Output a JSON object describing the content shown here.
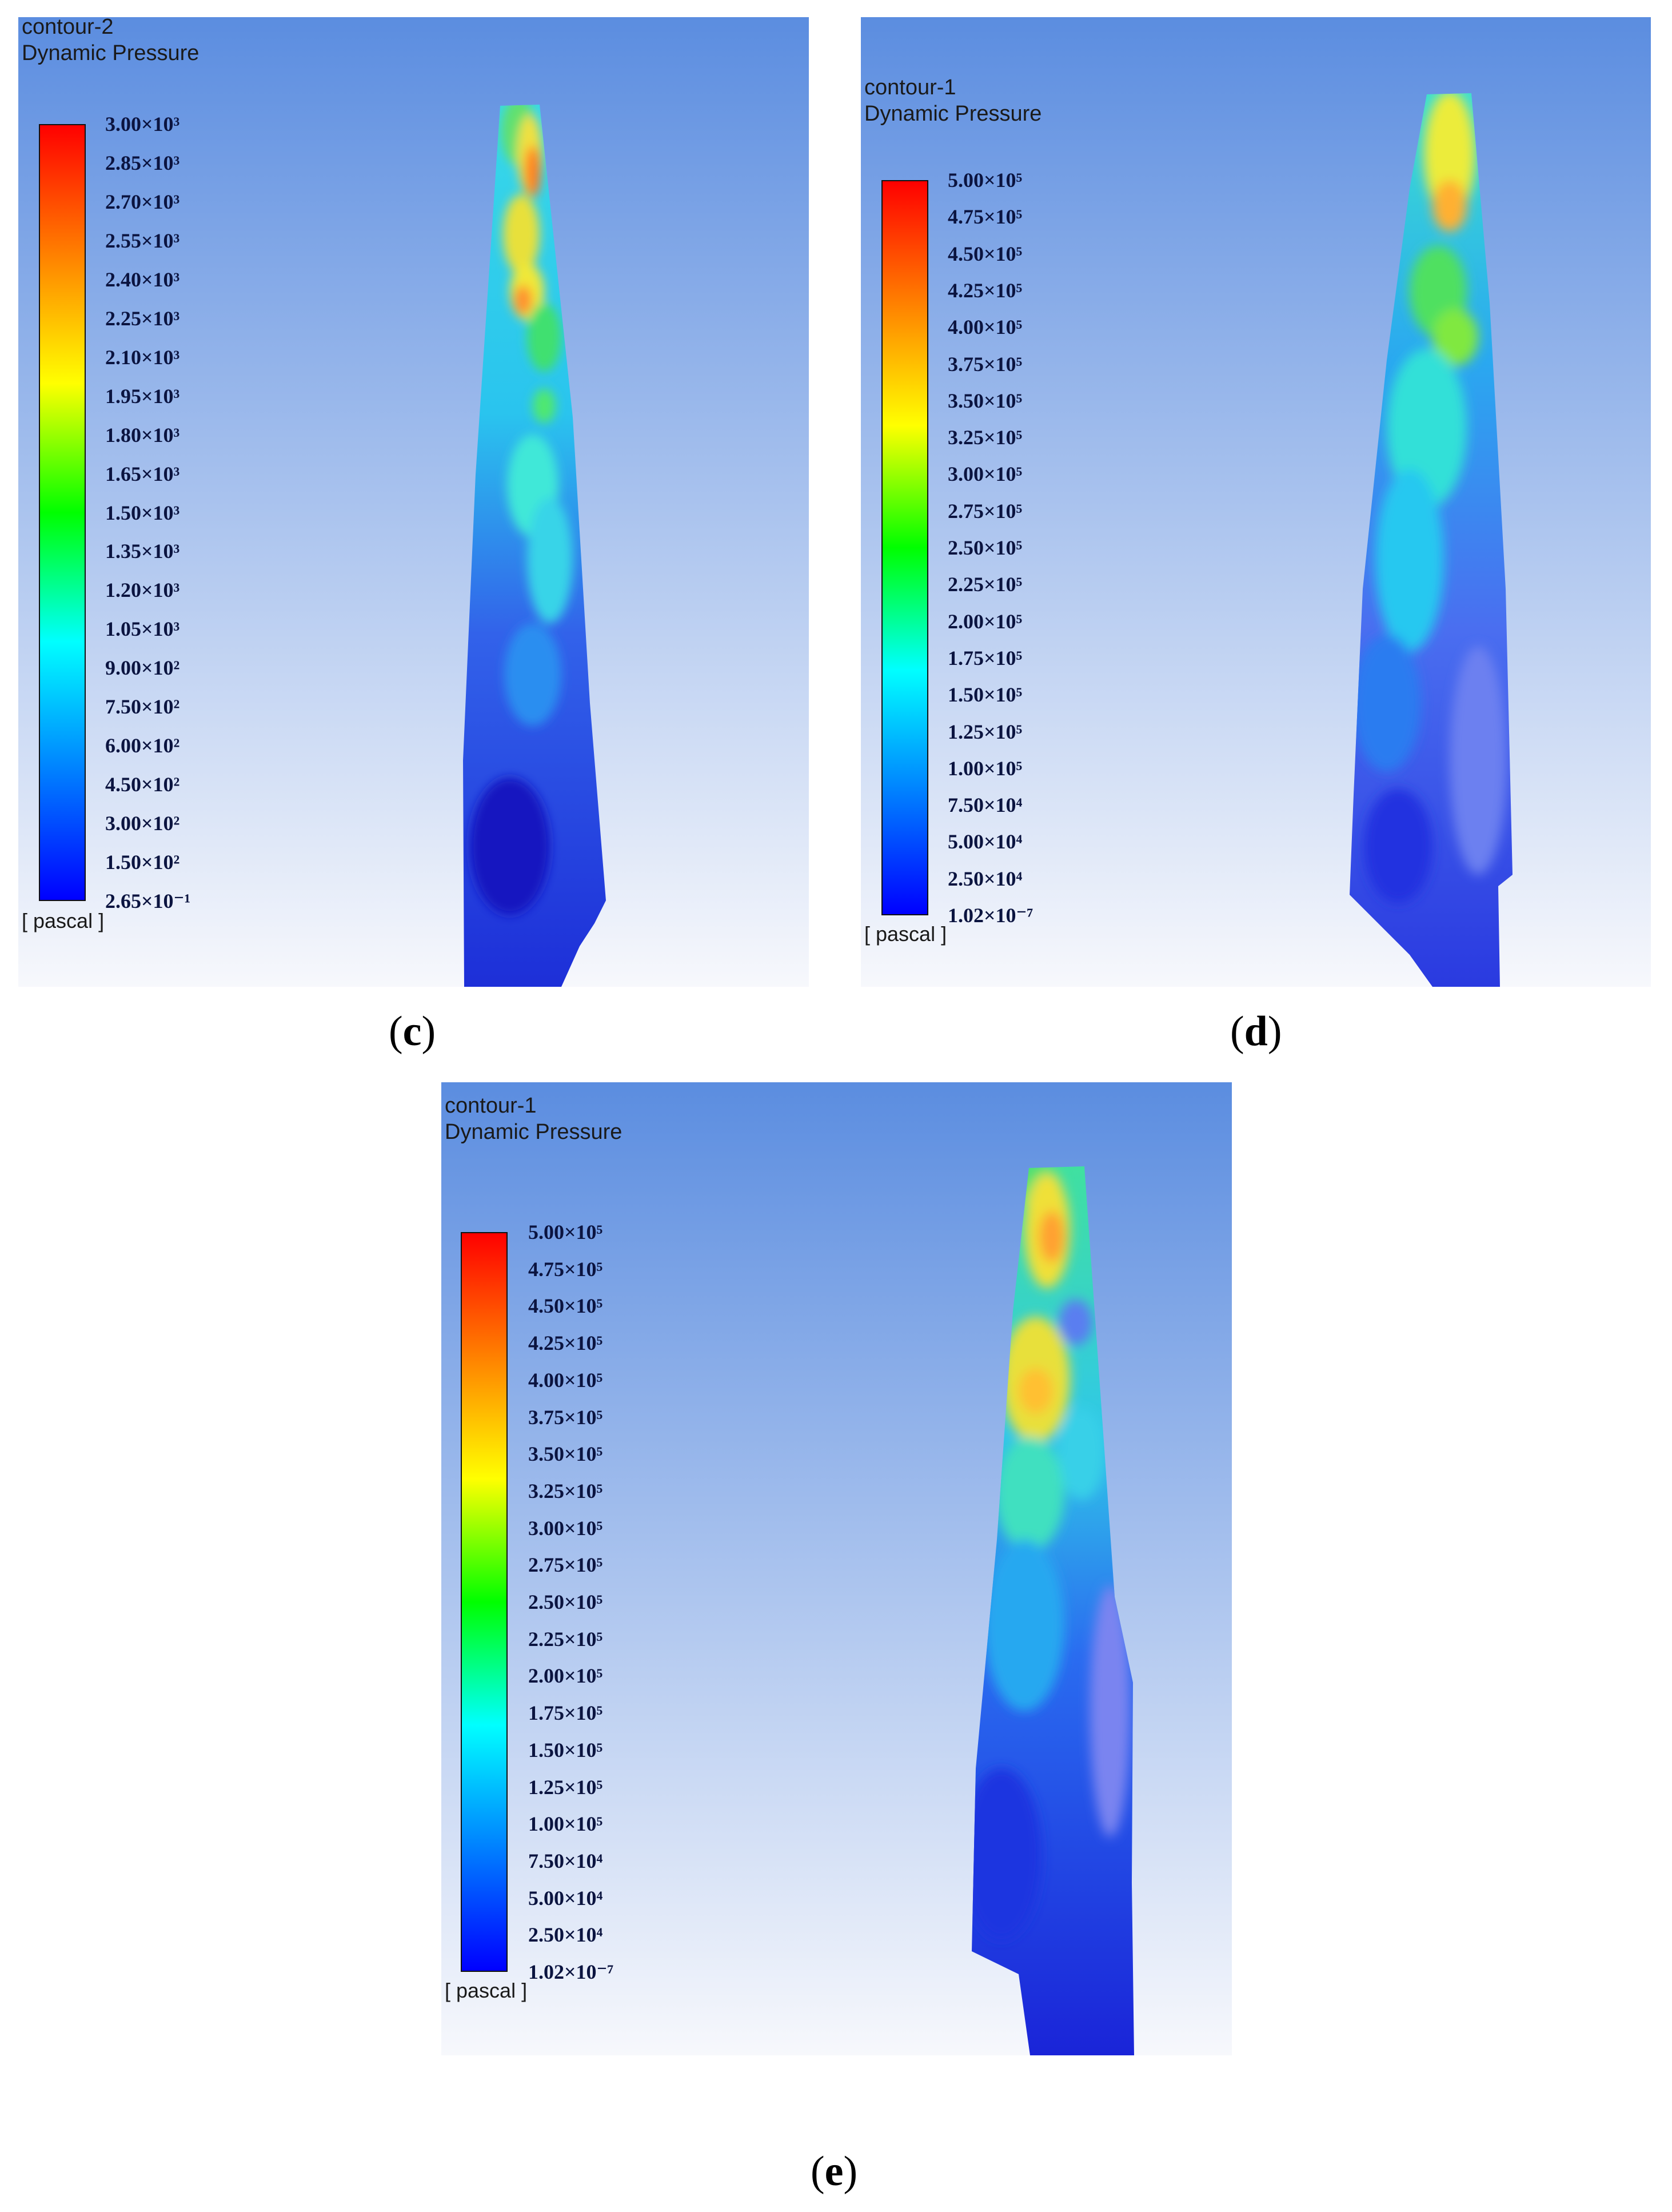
{
  "panels": [
    {
      "id": "c",
      "title": "contour-2",
      "variable": "Dynamic Pressure",
      "unit": "[ pascal ]",
      "caption_open": "(",
      "caption_letter": "c",
      "caption_close": ")",
      "colorbar_labels": [
        "3.00×10³",
        "2.85×10³",
        "2.70×10³",
        "2.55×10³",
        "2.40×10³",
        "2.25×10³",
        "2.10×10³",
        "1.95×10³",
        "1.80×10³",
        "1.65×10³",
        "1.50×10³",
        "1.35×10³",
        "1.20×10³",
        "1.05×10³",
        "9.00×10²",
        "7.50×10²",
        "6.00×10²",
        "4.50×10²",
        "3.00×10²",
        "1.50×10²",
        "2.65×10⁻¹"
      ]
    },
    {
      "id": "d",
      "title": "contour-1",
      "variable": "Dynamic Pressure",
      "unit": "[ pascal ]",
      "caption_open": "(",
      "caption_letter": "d",
      "caption_close": ")",
      "colorbar_labels": [
        "5.00×10⁵",
        "4.75×10⁵",
        "4.50×10⁵",
        "4.25×10⁵",
        "4.00×10⁵",
        "3.75×10⁵",
        "3.50×10⁵",
        "3.25×10⁵",
        "3.00×10⁵",
        "2.75×10⁵",
        "2.50×10⁵",
        "2.25×10⁵",
        "2.00×10⁵",
        "1.75×10⁵",
        "1.50×10⁵",
        "1.25×10⁵",
        "1.00×10⁵",
        "7.50×10⁴",
        "5.00×10⁴",
        "2.50×10⁴",
        "1.02×10⁻⁷"
      ]
    },
    {
      "id": "e",
      "title": "contour-1",
      "variable": "Dynamic Pressure",
      "unit": "[ pascal ]",
      "caption_open": "(",
      "caption_letter": "e",
      "caption_close": ")",
      "colorbar_labels": [
        "5.00×10⁵",
        "4.75×10⁵",
        "4.50×10⁵",
        "4.25×10⁵",
        "4.00×10⁵",
        "3.75×10⁵",
        "3.50×10⁵",
        "3.25×10⁵",
        "3.00×10⁵",
        "2.75×10⁵",
        "2.50×10⁵",
        "2.25×10⁵",
        "2.00×10⁵",
        "1.75×10⁵",
        "1.50×10⁵",
        "1.25×10⁵",
        "1.00×10⁵",
        "7.50×10⁴",
        "5.00×10⁴",
        "2.50×10⁴",
        "1.02×10⁻⁷"
      ]
    }
  ],
  "colors": {
    "bg_top": "#5b8de0",
    "bg_bottom": "#f7f8fc",
    "colormap": [
      "#ff0000",
      "#ff8000",
      "#ffff00",
      "#00ff00",
      "#00ffff",
      "#0080ff",
      "#0000ff"
    ]
  }
}
